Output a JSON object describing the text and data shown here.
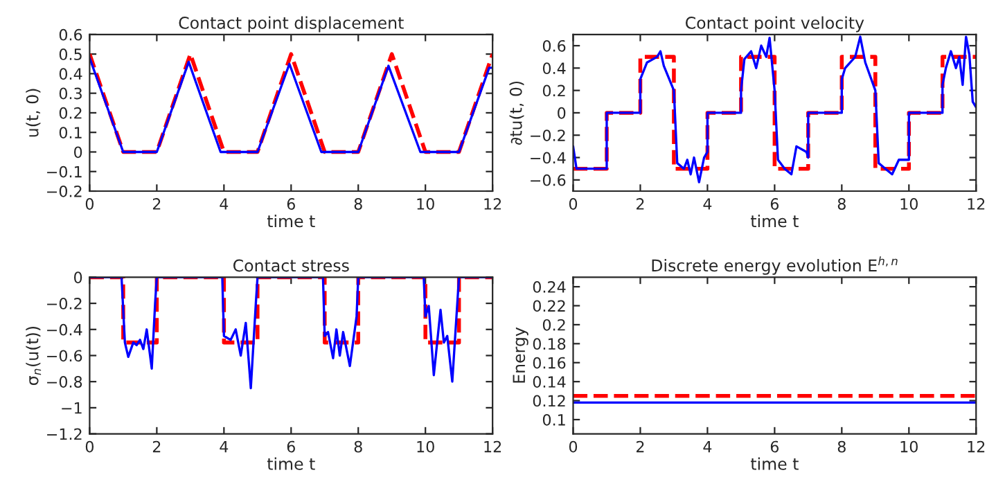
{
  "chart_data": [
    {
      "type": "line",
      "title": "Contact point displacement",
      "xlabel": "time t",
      "ylabel": "u(t, 0)",
      "xlim": [
        0,
        12
      ],
      "xticks": [
        0,
        2,
        4,
        6,
        8,
        10,
        12
      ],
      "ylim": [
        -0.2,
        0.6
      ],
      "yticks": [
        -0.2,
        -0.1,
        0.0,
        0.1,
        0.2,
        0.3,
        0.4,
        0.5,
        0.6
      ],
      "grid": false,
      "legend": false,
      "series": [
        {
          "color": "#ff0000",
          "line_style": "dashed",
          "x": [
            0,
            1,
            2,
            3,
            4,
            5,
            6,
            7,
            8,
            9,
            10,
            11,
            12
          ],
          "values": [
            0.5,
            0,
            0,
            0.5,
            0,
            0,
            0.5,
            0,
            0,
            0.5,
            0,
            0,
            0.5
          ]
        },
        {
          "color": "#0000ff",
          "line_style": "solid",
          "x": [
            0,
            1,
            2,
            2.95,
            3.9,
            5,
            5.95,
            6.9,
            8,
            8.9,
            9.85,
            11,
            11.9,
            12
          ],
          "values": [
            0.48,
            0,
            0,
            0.46,
            0,
            0,
            0.45,
            0,
            0,
            0.44,
            0,
            0,
            0.43,
            0.43
          ]
        }
      ]
    },
    {
      "type": "line",
      "title": "Contact point velocity",
      "xlabel": "time t",
      "ylabel": "∂tu(t, 0)",
      "xlim": [
        0,
        12
      ],
      "xticks": [
        0,
        2,
        4,
        6,
        8,
        10,
        12
      ],
      "ylim": [
        -0.7,
        0.7
      ],
      "yticks": [
        -0.6,
        -0.4,
        -0.2,
        0.0,
        0.2,
        0.4,
        0.6
      ],
      "grid": false,
      "legend": false,
      "series": [
        {
          "color": "#ff0000",
          "line_style": "dashed",
          "x": [
            0,
            1,
            1,
            2,
            2,
            3,
            3,
            4,
            4,
            5,
            5,
            6,
            6,
            7,
            7,
            8,
            8,
            9,
            9,
            10,
            10,
            11,
            11,
            12
          ],
          "values": [
            -0.5,
            -0.5,
            0,
            0,
            0.5,
            0.5,
            -0.5,
            -0.5,
            0,
            0,
            0.5,
            0.5,
            -0.5,
            -0.5,
            0,
            0,
            0.5,
            0.5,
            -0.5,
            -0.5,
            0,
            0,
            0.5,
            0.5
          ]
        },
        {
          "color": "#0000ff",
          "line_style": "solid",
          "x": [
            0,
            0.1,
            1,
            1,
            2,
            2,
            2.2,
            2.5,
            2.6,
            2.7,
            2.85,
            3.0,
            3.1,
            3.3,
            3.4,
            3.5,
            3.6,
            3.75,
            3.9,
            4,
            4,
            5,
            5,
            5.1,
            5.3,
            5.45,
            5.6,
            5.75,
            5.85,
            6,
            6.1,
            6.3,
            6.5,
            6.65,
            6.8,
            6.95,
            7,
            7,
            8,
            8,
            8.1,
            8.25,
            8.4,
            8.55,
            8.7,
            8.85,
            9,
            9.1,
            9.3,
            9.5,
            9.7,
            9.85,
            10,
            10,
            11,
            11,
            11.1,
            11.25,
            11.4,
            11.5,
            11.6,
            11.7,
            11.8,
            11.9,
            12
          ],
          "values": [
            -0.3,
            -0.5,
            -0.5,
            0,
            0,
            0.3,
            0.45,
            0.5,
            0.55,
            0.42,
            null,
            0.2,
            -0.45,
            -0.5,
            -0.42,
            -0.55,
            -0.4,
            -0.62,
            -0.4,
            -0.35,
            0,
            0,
            0.2,
            0.48,
            0.55,
            0.4,
            0.6,
            0.5,
            0.67,
            0.2,
            -0.42,
            -0.5,
            -0.55,
            -0.3,
            null,
            -0.35,
            -0.4,
            0,
            0,
            0.3,
            0.4,
            null,
            0.5,
            0.68,
            0.45,
            null,
            0.2,
            -0.45,
            -0.5,
            -0.55,
            -0.42,
            null,
            -0.42,
            0,
            0,
            0.25,
            0.4,
            0.55,
            0.4,
            0.5,
            0.25,
            0.68,
            0.52,
            0.1,
            0.05
          ]
        }
      ]
    },
    {
      "type": "line",
      "title": "Contact stress",
      "xlabel": "time t",
      "ylabel": "σ$_{n}$(u(t))",
      "xlim": [
        0,
        12
      ],
      "xticks": [
        0,
        2,
        4,
        6,
        8,
        10,
        12
      ],
      "ylim": [
        -1.2,
        0.0
      ],
      "yticks": [
        -1.2,
        -1.0,
        -0.8,
        -0.6,
        -0.4,
        -0.2,
        0.0
      ],
      "grid": false,
      "legend": false,
      "series": [
        {
          "color": "#ff0000",
          "line_style": "dashed",
          "x": [
            0,
            1,
            1,
            2,
            2,
            4,
            4,
            5,
            5,
            7,
            7,
            8,
            8,
            10,
            10,
            11,
            11,
            12
          ],
          "values": [
            0,
            0,
            -0.5,
            -0.5,
            0,
            0,
            -0.5,
            -0.5,
            0,
            0,
            -0.5,
            -0.5,
            0,
            0,
            -0.5,
            -0.5,
            0,
            0
          ]
        },
        {
          "color": "#0000ff",
          "line_style": "solid",
          "x": [
            0,
            0.95,
            1.05,
            1.15,
            1.3,
            1.4,
            1.5,
            1.6,
            1.7,
            1.85,
            1.95,
            2,
            3.95,
            4,
            4.2,
            4.35,
            4.5,
            4.65,
            4.8,
            4.95,
            5,
            6.95,
            7,
            7.1,
            7.25,
            7.35,
            7.45,
            7.55,
            7.75,
            7.95,
            8,
            9.95,
            10,
            10.1,
            10.25,
            10.45,
            10.55,
            10.65,
            10.8,
            11,
            12
          ],
          "values": [
            0,
            0,
            -0.5,
            -0.61,
            -0.5,
            -0.52,
            -0.48,
            -0.55,
            -0.4,
            -0.7,
            -0.2,
            0,
            0,
            -0.45,
            -0.48,
            -0.4,
            -0.6,
            -0.35,
            -0.85,
            -0.2,
            0,
            0,
            -0.45,
            -0.42,
            -0.62,
            -0.4,
            -0.6,
            -0.42,
            -0.68,
            -0.3,
            0,
            0,
            -0.3,
            -0.22,
            -0.75,
            -0.25,
            -0.5,
            -0.45,
            -0.8,
            0,
            0
          ]
        }
      ]
    },
    {
      "type": "line",
      "title": "Discrete energy evolution E$^{h,n}$",
      "xlabel": "time t",
      "ylabel": "Energy",
      "xlim": [
        0,
        12
      ],
      "xticks": [
        0,
        2,
        4,
        6,
        8,
        10,
        12
      ],
      "ylim": [
        0.085,
        0.25
      ],
      "yticks": [
        0.1,
        0.12,
        0.14,
        0.16,
        0.18,
        0.2,
        0.22,
        0.24
      ],
      "grid": false,
      "legend": false,
      "series": [
        {
          "color": "#ff0000",
          "line_style": "dashed",
          "x": [
            0,
            12
          ],
          "values": [
            0.125,
            0.125
          ]
        },
        {
          "color": "#0000ff",
          "line_style": "solid",
          "x": [
            0,
            12
          ],
          "values": [
            0.118,
            0.118
          ]
        }
      ]
    }
  ]
}
